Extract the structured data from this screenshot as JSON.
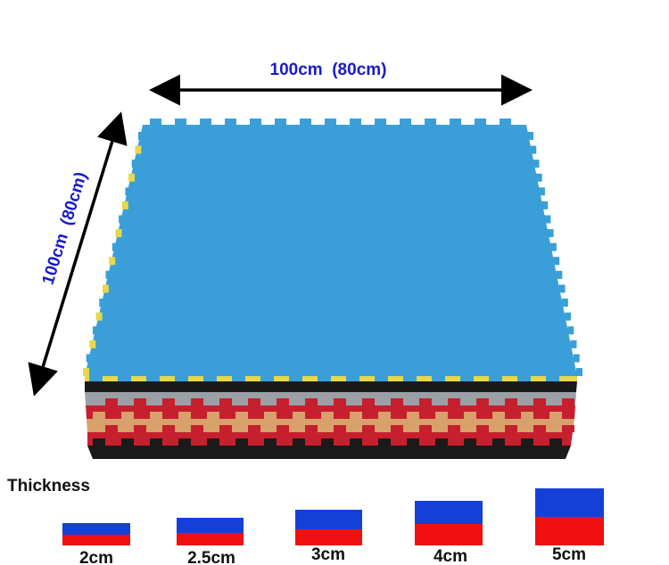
{
  "dimension_labels": {
    "width": "100cm  (80cm)",
    "length": "100cm  (80cm)"
  },
  "thickness": {
    "title": "Thickness",
    "options": [
      "2cm",
      "2.5cm",
      "3cm",
      "4cm",
      "5cm"
    ]
  }
}
